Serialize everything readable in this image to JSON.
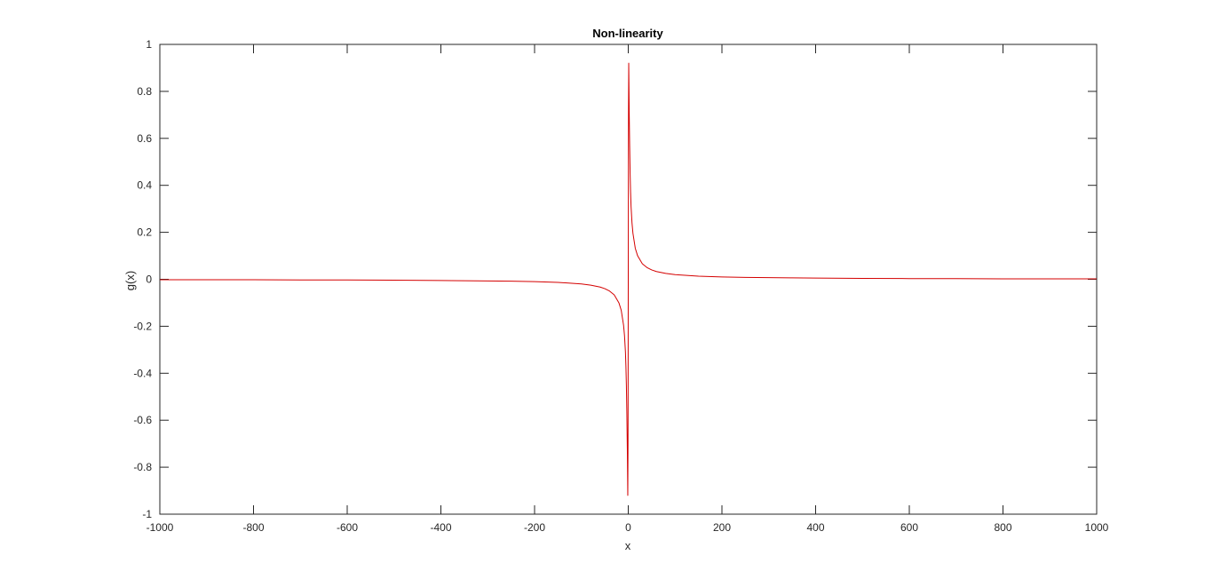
{
  "colors": {
    "background": "#ffffff",
    "axes": "#262626",
    "series_line": "#d40000"
  },
  "chart_data": {
    "type": "line",
    "title": "Non-linearity",
    "xlabel": "x",
    "ylabel": "g(x)",
    "xlim": [
      -1000,
      1000
    ],
    "ylim": [
      -1,
      1
    ],
    "grid": false,
    "box": true,
    "x_ticks": [
      "-1000",
      "-800",
      "-600",
      "-400",
      "-200",
      "0",
      "200",
      "400",
      "600",
      "800",
      "1000"
    ],
    "y_ticks": [
      "-1",
      "-0.8",
      "-0.6",
      "-0.4",
      "-0.2",
      "0",
      "0.2",
      "0.4",
      "0.6",
      "0.8",
      "1"
    ],
    "series": [
      {
        "color": "#d40000",
        "x": [
          -1000,
          -900,
          -800,
          -700,
          -600,
          -500,
          -400,
          -350,
          -300,
          -250,
          -200,
          -150,
          -100,
          -80,
          -60,
          -50,
          -40,
          -30,
          -20,
          -15,
          -10,
          -8,
          -6,
          -5,
          -4,
          -3,
          -2,
          -1.5,
          -1,
          -0.5,
          0,
          0.5,
          1,
          1.5,
          2,
          3,
          4,
          5,
          6,
          8,
          10,
          15,
          20,
          30,
          40,
          50,
          60,
          80,
          100,
          150,
          200,
          250,
          300,
          350,
          400,
          500,
          600,
          700,
          800,
          900,
          1000
        ],
        "y": [
          -0.002,
          -0.002,
          -0.002,
          -0.003,
          -0.003,
          -0.004,
          -0.005,
          -0.006,
          -0.007,
          -0.008,
          -0.01,
          -0.013,
          -0.02,
          -0.025,
          -0.033,
          -0.04,
          -0.05,
          -0.066,
          -0.1,
          -0.132,
          -0.196,
          -0.24,
          -0.31,
          -0.37,
          -0.45,
          -0.57,
          -0.72,
          -0.82,
          -0.92,
          -0.7,
          0,
          0.7,
          0.92,
          0.82,
          0.72,
          0.57,
          0.45,
          0.37,
          0.31,
          0.24,
          0.196,
          0.132,
          0.1,
          0.066,
          0.05,
          0.04,
          0.033,
          0.025,
          0.02,
          0.013,
          0.01,
          0.008,
          0.007,
          0.006,
          0.005,
          0.004,
          0.003,
          0.003,
          0.002,
          0.002,
          0.002
        ]
      }
    ]
  }
}
